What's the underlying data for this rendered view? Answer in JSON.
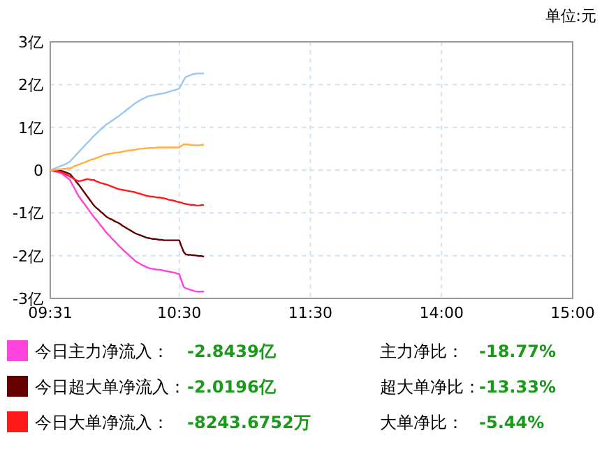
{
  "chart_data": {
    "type": "line",
    "ylabel": "单位:元",
    "categories": [
      "09:31",
      null,
      null,
      null,
      null,
      null,
      null,
      null,
      null,
      null,
      null,
      null,
      null,
      null,
      null,
      null,
      null,
      null,
      null,
      null,
      null,
      null,
      null,
      null,
      null,
      null,
      null,
      null,
      null,
      null,
      null,
      null,
      null,
      null,
      null,
      null,
      null,
      null,
      null,
      null,
      null,
      null,
      null,
      null,
      null,
      null,
      null,
      null,
      null,
      null,
      null,
      null,
      null,
      null,
      null,
      null,
      null,
      null,
      null,
      "10:30",
      null,
      null,
      null,
      null,
      null,
      null,
      null,
      null,
      null,
      null,
      null,
      null,
      null,
      null,
      null,
      null,
      null,
      null,
      null,
      null,
      null,
      null,
      null,
      null,
      null,
      null,
      null,
      null,
      null,
      null,
      null,
      null,
      null,
      null,
      null,
      null,
      null,
      null,
      null,
      null,
      null,
      null,
      null,
      null,
      null,
      null,
      null,
      null,
      null,
      null,
      null,
      null,
      null,
      null,
      null,
      null,
      null,
      null,
      null,
      "11:30",
      null,
      null,
      null,
      null,
      null,
      null,
      null,
      null,
      null,
      null,
      null,
      null,
      null,
      null,
      null,
      null,
      null,
      null,
      null,
      null,
      null,
      null,
      null,
      null,
      null,
      null,
      null,
      null,
      null,
      null,
      null,
      null,
      null,
      null,
      null,
      null,
      null,
      null,
      null,
      null,
      null,
      null,
      null,
      null,
      null,
      null,
      null,
      null,
      null,
      null,
      null,
      null,
      null,
      null,
      null,
      null,
      null,
      null,
      null,
      "14:00",
      null,
      null,
      null,
      null,
      null,
      null,
      null,
      null,
      null,
      null,
      null,
      null,
      null,
      null,
      null,
      null,
      null,
      null,
      null,
      null,
      null,
      null,
      null,
      null,
      null,
      null,
      null,
      null,
      null,
      null,
      null,
      null,
      null,
      null,
      null,
      null,
      null,
      null,
      null,
      null,
      null,
      null,
      null,
      null,
      null,
      null,
      null,
      null,
      null,
      null,
      null,
      null,
      null,
      null,
      null,
      null,
      null,
      null,
      null,
      "15:00"
    ],
    "ylim": [
      -3,
      3
    ],
    "yticks": [
      {
        "value": 3,
        "label": "3亿"
      },
      {
        "value": 2,
        "label": "2亿"
      },
      {
        "value": 1,
        "label": "1亿"
      },
      0,
      {
        "value": -1,
        "label": "-1亿"
      },
      {
        "value": -2,
        "label": "-2亿"
      },
      {
        "value": -3,
        "label": "-3亿"
      }
    ],
    "grid": true,
    "legend": "bottom",
    "marker": "none",
    "line_style": "solid",
    "series": [
      {
        "name": "今日主力净流入：",
        "color": "#ff44dd",
        "values": [
          0,
          -0.01,
          -0.03,
          -0.04,
          -0.06,
          -0.07,
          -0.11,
          -0.15,
          -0.19,
          -0.23,
          -0.33,
          -0.42,
          -0.52,
          -0.61,
          -0.68,
          -0.75,
          -0.82,
          -0.89,
          -0.96,
          -1.03,
          -1.1,
          -1.16,
          -1.22,
          -1.29,
          -1.35,
          -1.42,
          -1.48,
          -1.53,
          -1.59,
          -1.64,
          -1.69,
          -1.75,
          -1.8,
          -1.85,
          -1.9,
          -1.94,
          -1.99,
          -2.04,
          -2.08,
          -2.13,
          -2.16,
          -2.19,
          -2.22,
          -2.24,
          -2.27,
          -2.29,
          -2.3,
          -2.31,
          -2.32,
          -2.33,
          -2.33,
          -2.34,
          -2.35,
          -2.36,
          -2.37,
          -2.38,
          -2.39,
          -2.4,
          -2.42,
          -2.43,
          -2.58,
          -2.73,
          -2.76,
          -2.78,
          -2.8,
          -2.81,
          -2.83,
          -2.84,
          -2.84,
          -2.84,
          -2.84,
          null,
          null,
          null,
          null,
          null,
          null,
          null,
          null,
          null,
          null,
          null,
          null,
          null,
          null,
          null,
          null,
          null,
          null,
          null,
          null,
          null,
          null,
          null,
          null,
          null,
          null,
          null,
          null,
          null,
          null,
          null,
          null,
          null,
          null,
          null,
          null,
          null,
          null,
          null,
          null,
          null,
          null,
          null,
          null,
          null,
          null,
          null,
          null,
          null,
          null,
          null,
          null,
          null,
          null,
          null,
          null,
          null,
          null,
          null,
          null,
          null,
          null,
          null,
          null,
          null,
          null,
          null,
          null,
          null,
          null,
          null,
          null,
          null,
          null,
          null,
          null,
          null,
          null,
          null,
          null,
          null,
          null,
          null,
          null,
          null,
          null,
          null,
          null,
          null,
          null,
          null,
          null,
          null,
          null,
          null,
          null,
          null,
          null,
          null,
          null,
          null,
          null,
          null,
          null,
          null,
          null,
          null,
          null,
          null,
          null,
          null,
          null,
          null,
          null,
          null,
          null,
          null,
          null,
          null,
          null,
          null,
          null,
          null,
          null,
          null,
          null,
          null,
          null,
          null,
          null,
          null,
          null,
          null,
          null,
          null,
          null,
          null,
          null,
          null,
          null,
          null,
          null,
          null,
          null,
          null,
          null,
          null,
          null,
          null,
          null,
          null,
          null,
          null,
          null,
          null,
          null,
          null,
          null,
          null,
          null,
          null,
          null,
          null,
          null,
          null,
          null,
          null,
          null,
          null
        ]
      },
      {
        "name": "今日超大单净流入：",
        "color": "#660000",
        "values": [
          0,
          0,
          -0.01,
          -0.01,
          -0.02,
          -0.02,
          -0.03,
          -0.05,
          -0.07,
          -0.09,
          -0.15,
          -0.21,
          -0.28,
          -0.34,
          -0.41,
          -0.48,
          -0.55,
          -0.62,
          -0.69,
          -0.76,
          -0.83,
          -0.88,
          -0.92,
          -0.97,
          -1.01,
          -1.06,
          -1.1,
          -1.13,
          -1.15,
          -1.18,
          -1.21,
          -1.23,
          -1.26,
          -1.3,
          -1.33,
          -1.36,
          -1.39,
          -1.42,
          -1.45,
          -1.48,
          -1.5,
          -1.52,
          -1.54,
          -1.56,
          -1.58,
          -1.59,
          -1.6,
          -1.61,
          -1.61,
          -1.62,
          -1.63,
          -1.63,
          -1.64,
          -1.64,
          -1.64,
          -1.64,
          -1.64,
          -1.64,
          -1.64,
          -1.64,
          -1.78,
          -1.91,
          -1.97,
          -1.98,
          -1.98,
          -1.99,
          -1.99,
          -2.0,
          -2.01,
          -2.01,
          -2.02,
          null,
          null,
          null,
          null,
          null,
          null,
          null,
          null,
          null,
          null,
          null,
          null,
          null,
          null,
          null,
          null,
          null,
          null,
          null,
          null,
          null,
          null,
          null,
          null,
          null,
          null,
          null,
          null,
          null,
          null,
          null,
          null,
          null,
          null,
          null,
          null,
          null,
          null,
          null,
          null,
          null,
          null,
          null,
          null,
          null,
          null,
          null,
          null,
          null,
          null,
          null,
          null,
          null,
          null,
          null,
          null,
          null,
          null,
          null,
          null,
          null,
          null,
          null,
          null,
          null,
          null,
          null,
          null,
          null,
          null,
          null,
          null,
          null,
          null,
          null,
          null,
          null,
          null,
          null,
          null,
          null,
          null,
          null,
          null,
          null,
          null,
          null,
          null,
          null,
          null,
          null,
          null,
          null,
          null,
          null,
          null,
          null,
          null,
          null,
          null,
          null,
          null,
          null,
          null,
          null,
          null,
          null,
          null,
          null,
          null,
          null,
          null,
          null,
          null,
          null,
          null,
          null,
          null,
          null,
          null,
          null,
          null,
          null,
          null,
          null,
          null,
          null,
          null,
          null,
          null,
          null,
          null,
          null,
          null,
          null,
          null,
          null,
          null,
          null,
          null,
          null,
          null,
          null,
          null,
          null,
          null,
          null,
          null,
          null,
          null,
          null,
          null,
          null,
          null,
          null,
          null,
          null,
          null,
          null,
          null,
          null,
          null,
          null,
          null,
          null,
          null,
          null,
          null,
          null
        ]
      },
      {
        "name": "今日大单净流入：",
        "color": "#ff1a1a",
        "values": [
          0,
          -0.01,
          -0.02,
          -0.02,
          -0.03,
          -0.04,
          -0.07,
          -0.1,
          -0.12,
          -0.15,
          -0.18,
          -0.21,
          -0.24,
          -0.26,
          -0.25,
          -0.24,
          -0.22,
          -0.21,
          -0.22,
          -0.23,
          -0.23,
          -0.26,
          -0.28,
          -0.3,
          -0.31,
          -0.33,
          -0.34,
          -0.36,
          -0.38,
          -0.4,
          -0.42,
          -0.44,
          -0.45,
          -0.46,
          -0.47,
          -0.48,
          -0.49,
          -0.5,
          -0.51,
          -0.52,
          -0.54,
          -0.55,
          -0.57,
          -0.58,
          -0.6,
          -0.61,
          -0.62,
          -0.62,
          -0.63,
          -0.64,
          -0.64,
          -0.65,
          -0.66,
          -0.67,
          -0.69,
          -0.7,
          -0.71,
          -0.72,
          -0.74,
          -0.75,
          -0.76,
          -0.78,
          -0.79,
          -0.8,
          -0.81,
          -0.81,
          -0.82,
          -0.83,
          -0.83,
          -0.82,
          -0.82,
          null,
          null,
          null,
          null,
          null,
          null,
          null,
          null,
          null,
          null,
          null,
          null,
          null,
          null,
          null,
          null,
          null,
          null,
          null,
          null,
          null,
          null,
          null,
          null,
          null,
          null,
          null,
          null,
          null,
          null,
          null,
          null,
          null,
          null,
          null,
          null,
          null,
          null,
          null,
          null,
          null,
          null,
          null,
          null,
          null,
          null,
          null,
          null,
          null,
          null,
          null,
          null,
          null,
          null,
          null,
          null,
          null,
          null,
          null,
          null,
          null,
          null,
          null,
          null,
          null,
          null,
          null,
          null,
          null,
          null,
          null,
          null,
          null,
          null,
          null,
          null,
          null,
          null,
          null,
          null,
          null,
          null,
          null,
          null,
          null,
          null,
          null,
          null,
          null,
          null,
          null,
          null,
          null,
          null,
          null,
          null,
          null,
          null,
          null,
          null,
          null,
          null,
          null,
          null,
          null,
          null,
          null,
          null,
          null,
          null,
          null,
          null,
          null,
          null,
          null,
          null,
          null,
          null,
          null,
          null,
          null,
          null,
          null,
          null,
          null,
          null,
          null,
          null,
          null,
          null,
          null,
          null,
          null,
          null,
          null,
          null,
          null,
          null,
          null,
          null,
          null,
          null,
          null,
          null,
          null,
          null,
          null,
          null,
          null,
          null,
          null,
          null,
          null,
          null,
          null,
          null,
          null,
          null,
          null,
          null,
          null,
          null,
          null,
          null,
          null,
          null,
          null,
          null,
          null
        ]
      },
      {
        "color": "#99c8f0",
        "values": [
          0,
          0.02,
          0.04,
          0.06,
          0.08,
          0.1,
          0.12,
          0.14,
          0.17,
          0.2,
          0.26,
          0.31,
          0.37,
          0.42,
          0.48,
          0.53,
          0.59,
          0.64,
          0.69,
          0.75,
          0.8,
          0.85,
          0.9,
          0.95,
          0.99,
          1.04,
          1.08,
          1.11,
          1.15,
          1.18,
          1.22,
          1.25,
          1.29,
          1.33,
          1.37,
          1.41,
          1.45,
          1.49,
          1.53,
          1.57,
          1.6,
          1.63,
          1.66,
          1.68,
          1.71,
          1.73,
          1.74,
          1.75,
          1.76,
          1.77,
          1.78,
          1.79,
          1.8,
          1.81,
          1.83,
          1.84,
          1.86,
          1.87,
          1.89,
          1.91,
          2.0,
          2.1,
          2.18,
          2.2,
          2.22,
          2.24,
          2.25,
          2.26,
          2.26,
          2.26,
          2.26,
          null,
          null,
          null,
          null,
          null,
          null,
          null,
          null,
          null,
          null,
          null,
          null,
          null,
          null,
          null,
          null,
          null,
          null,
          null,
          null,
          null,
          null,
          null,
          null,
          null,
          null,
          null,
          null,
          null,
          null,
          null,
          null,
          null,
          null,
          null,
          null,
          null,
          null,
          null,
          null,
          null,
          null,
          null,
          null,
          null,
          null,
          null,
          null,
          null,
          null,
          null,
          null,
          null,
          null,
          null,
          null,
          null,
          null,
          null,
          null,
          null,
          null,
          null,
          null,
          null,
          null,
          null,
          null,
          null,
          null,
          null,
          null,
          null,
          null,
          null,
          null,
          null,
          null,
          null,
          null,
          null,
          null,
          null,
          null,
          null,
          null,
          null,
          null,
          null,
          null,
          null,
          null,
          null,
          null,
          null,
          null,
          null,
          null,
          null,
          null,
          null,
          null,
          null,
          null,
          null,
          null,
          null,
          null,
          null,
          null,
          null,
          null,
          null,
          null,
          null,
          null,
          null,
          null,
          null,
          null,
          null,
          null,
          null,
          null,
          null,
          null,
          null,
          null,
          null,
          null,
          null,
          null,
          null,
          null,
          null,
          null,
          null,
          null,
          null,
          null,
          null,
          null,
          null,
          null,
          null,
          null,
          null,
          null,
          null,
          null,
          null,
          null,
          null,
          null,
          null,
          null,
          null,
          null,
          null,
          null,
          null,
          null,
          null,
          null,
          null,
          null,
          null,
          null,
          null
        ]
      },
      {
        "color": "#ffb040",
        "values": [
          0,
          0,
          0.01,
          0.01,
          0.02,
          0.02,
          0.03,
          0.03,
          0.04,
          0.04,
          0.06,
          0.09,
          0.11,
          0.13,
          0.15,
          0.17,
          0.19,
          0.21,
          0.23,
          0.25,
          0.26,
          0.28,
          0.3,
          0.32,
          0.34,
          0.36,
          0.37,
          0.38,
          0.39,
          0.4,
          0.41,
          0.41,
          0.42,
          0.43,
          0.44,
          0.45,
          0.46,
          0.46,
          0.47,
          0.48,
          0.49,
          0.5,
          0.5,
          0.51,
          0.51,
          0.52,
          0.52,
          0.52,
          0.52,
          0.53,
          0.53,
          0.53,
          0.53,
          0.53,
          0.53,
          0.53,
          0.53,
          0.53,
          0.53,
          0.53,
          0.57,
          0.6,
          0.6,
          0.6,
          0.59,
          0.59,
          0.58,
          0.58,
          0.58,
          0.59,
          0.59,
          null,
          null,
          null,
          null,
          null,
          null,
          null,
          null,
          null,
          null,
          null,
          null,
          null,
          null,
          null,
          null,
          null,
          null,
          null,
          null,
          null,
          null,
          null,
          null,
          null,
          null,
          null,
          null,
          null,
          null,
          null,
          null,
          null,
          null,
          null,
          null,
          null,
          null,
          null,
          null,
          null,
          null,
          null,
          null,
          null,
          null,
          null,
          null,
          null,
          null,
          null,
          null,
          null,
          null,
          null,
          null,
          null,
          null,
          null,
          null,
          null,
          null,
          null,
          null,
          null,
          null,
          null,
          null,
          null,
          null,
          null,
          null,
          null,
          null,
          null,
          null,
          null,
          null,
          null,
          null,
          null,
          null,
          null,
          null,
          null,
          null,
          null,
          null,
          null,
          null,
          null,
          null,
          null,
          null,
          null,
          null,
          null,
          null,
          null,
          null,
          null,
          null,
          null,
          null,
          null,
          null,
          null,
          null,
          null,
          null,
          null,
          null,
          null,
          null,
          null,
          null,
          null,
          null,
          null,
          null,
          null,
          null,
          null,
          null,
          null,
          null,
          null,
          null,
          null,
          null,
          null,
          null,
          null,
          null,
          null,
          null,
          null,
          null,
          null,
          null,
          null,
          null,
          null,
          null,
          null,
          null,
          null,
          null,
          null,
          null,
          null,
          null,
          null,
          null,
          null,
          null,
          null,
          null,
          null,
          null,
          null,
          null,
          null,
          null,
          null,
          null,
          null,
          null,
          null
        ]
      }
    ],
    "annotations": [
      "-2.8439亿",
      "主力净比：",
      "-18.77%",
      "-2.0196亿",
      "超大单净比：",
      "-13.33%",
      "-8243.6752万",
      "大单净比：",
      "-5.44%"
    ]
  }
}
